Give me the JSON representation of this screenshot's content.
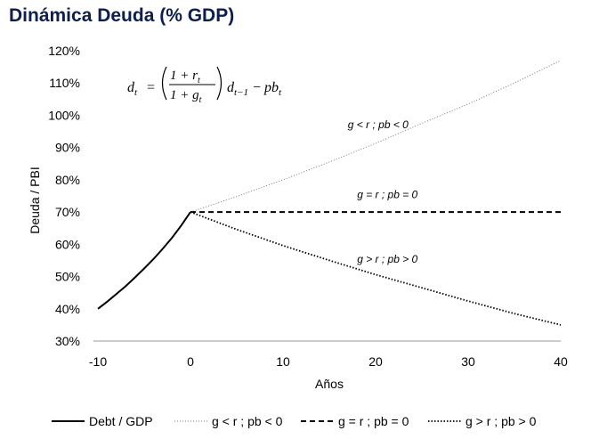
{
  "title": "Dinámica Deuda (% GDP)",
  "formula": {
    "lhs": "d",
    "lhs_sub": "t",
    "num": "1 + r",
    "num_sub": "t",
    "den": "1 + g",
    "den_sub": "t",
    "rhs_d": "d",
    "rhs_d_sub": "t−1",
    "rhs_pb": "pb",
    "rhs_pb_sub": "t"
  },
  "chart_data": {
    "type": "line",
    "title": "Dinámica Deuda (% GDP)",
    "xlabel": "Años",
    "ylabel": "Deuda / PBI",
    "xlim": [
      -10,
      40
    ],
    "ylim": [
      30,
      120
    ],
    "xticks": [
      -10,
      0,
      10,
      20,
      30,
      40
    ],
    "xtick_labels": [
      "-10",
      "0",
      "10",
      "20",
      "30",
      "40"
    ],
    "yticks": [
      30,
      40,
      50,
      60,
      70,
      80,
      90,
      100,
      110,
      120
    ],
    "ytick_labels": [
      "30%",
      "40%",
      "50%",
      "60%",
      "70%",
      "80%",
      "90%",
      "100%",
      "110%",
      "120%"
    ],
    "grid": false,
    "legend_position": "bottom",
    "series": [
      {
        "name": "Debt / GDP",
        "style": "solid",
        "x": [
          -10,
          -9,
          -8,
          -7,
          -6,
          -5,
          -4,
          -3,
          -2,
          -1,
          0
        ],
        "y": [
          40,
          42.2,
          44.6,
          47.0,
          49.7,
          52.5,
          55.4,
          58.6,
          62.0,
          65.8,
          70
        ]
      },
      {
        "name": "g < r ; pb < 0",
        "style": "dotted-fine",
        "x": [
          0,
          5,
          10,
          15,
          20,
          25,
          30,
          35,
          40
        ],
        "y": [
          70,
          74.8,
          80.0,
          85.5,
          91.3,
          97.5,
          103.5,
          110.0,
          117
        ]
      },
      {
        "name": "g = r ; pb = 0",
        "style": "dashed",
        "x": [
          0,
          40
        ],
        "y": [
          70,
          70
        ]
      },
      {
        "name": "g > r ; pb > 0",
        "style": "dotted",
        "x": [
          0,
          5,
          10,
          15,
          20,
          25,
          30,
          35,
          40
        ],
        "y": [
          70,
          64.6,
          59.6,
          55.0,
          50.6,
          46.5,
          42.4,
          38.5,
          35
        ]
      }
    ],
    "annotations": [
      {
        "text": "g < r ; pb < 0",
        "x": 17,
        "y": 96
      },
      {
        "text": "g = r ; pb = 0",
        "x": 18,
        "y": 74.3
      },
      {
        "text": "g > r ; pb > 0",
        "x": 18,
        "y": 54.3
      }
    ]
  }
}
